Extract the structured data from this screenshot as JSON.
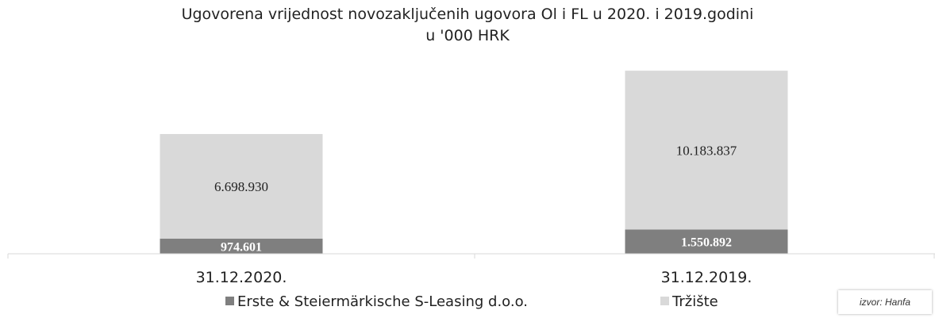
{
  "chart_data": {
    "type": "bar",
    "stacked": true,
    "title": "Ugovorena vrijednost novozaključenih ugovora Ol i FL u 2020. i 2019.godini",
    "subtitle": "u '000 HRK",
    "categories": [
      "31.12.2020.",
      "31.12.2019."
    ],
    "series": [
      {
        "name": "Erste & Steiermärkische S-Leasing d.o.o.",
        "values": [
          974601,
          1550892
        ],
        "labels": [
          "974.601",
          "1.550.892"
        ],
        "color": "#7f7f7f"
      },
      {
        "name": "Tržište",
        "values": [
          6698930,
          10183837
        ],
        "labels": [
          "6.698.930",
          "10.183.837"
        ],
        "color": "#d9d9d9"
      }
    ],
    "ylim": [
      0,
      12200000
    ],
    "grid": false,
    "legend": "bottom"
  },
  "source": "izvor: Hanfa"
}
